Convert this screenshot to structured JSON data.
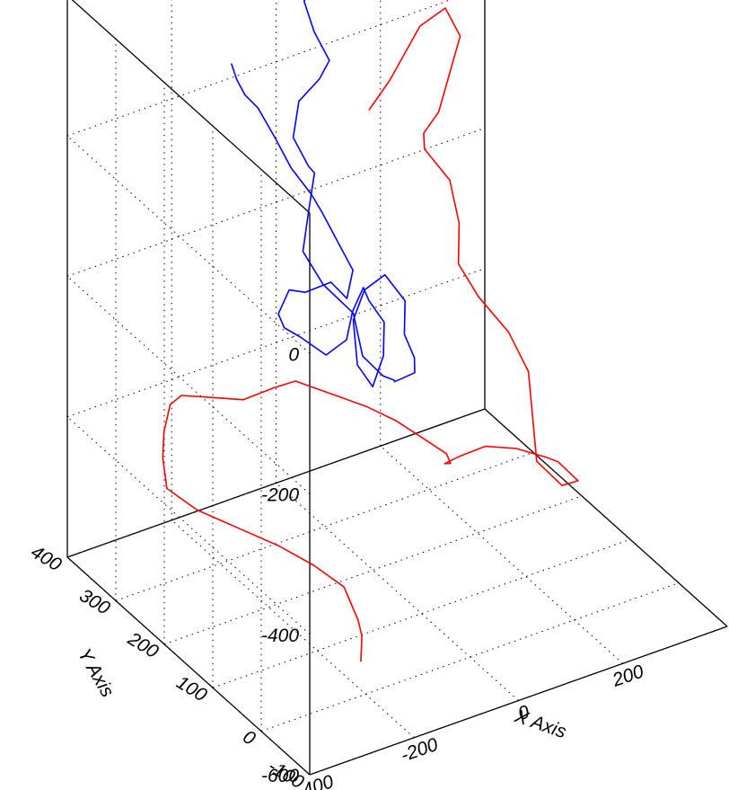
{
  "chart_data": {
    "type": "line",
    "title": "",
    "grid": true,
    "legend": "none",
    "x_axis": {
      "label": "X Axis",
      "range": [
        -400,
        400
      ],
      "ticks": [
        "-400",
        "-200",
        "0",
        "200"
      ]
    },
    "y_axis": {
      "label": "Y Axis",
      "range": [
        -100,
        400
      ],
      "ticks": [
        "-100",
        "0",
        "100",
        "200",
        "300",
        "400"
      ]
    },
    "z_axis": {
      "label": "",
      "range": [
        -600,
        200
      ],
      "ticks": [
        "-600",
        "-400",
        "-200",
        "0"
      ]
    },
    "series": [
      {
        "color": "#0000ff",
        "style": "3D trajectory",
        "points": [
          [
            -225,
            250,
            150
          ],
          [
            -210,
            255,
            120
          ],
          [
            -190,
            260,
            90
          ],
          [
            -160,
            265,
            60
          ],
          [
            -140,
            250,
            20
          ],
          [
            -120,
            240,
            -20
          ],
          [
            -90,
            230,
            -60
          ],
          [
            -60,
            240,
            -100
          ],
          [
            -40,
            230,
            -140
          ],
          [
            -20,
            220,
            -180
          ],
          [
            -50,
            200,
            -200
          ],
          [
            -90,
            190,
            -160
          ],
          [
            -130,
            200,
            -170
          ],
          [
            -170,
            190,
            -150
          ],
          [
            -200,
            180,
            -170
          ],
          [
            -170,
            200,
            -210
          ],
          [
            -130,
            210,
            -240
          ],
          [
            -90,
            200,
            -270
          ],
          [
            -60,
            190,
            -250
          ],
          [
            -30,
            210,
            -230
          ],
          [
            0,
            220,
            -210
          ],
          [
            20,
            230,
            -240
          ],
          [
            40,
            220,
            -270
          ],
          [
            20,
            200,
            -300
          ],
          [
            -10,
            190,
            -330
          ],
          [
            -30,
            200,
            -300
          ],
          [
            -10,
            230,
            -260
          ],
          [
            30,
            250,
            -240
          ],
          [
            60,
            240,
            -220
          ],
          [
            80,
            220,
            -250
          ],
          [
            60,
            200,
            -280
          ],
          [
            70,
            190,
            -310
          ],
          [
            80,
            200,
            -340
          ],
          [
            60,
            220,
            -360
          ],
          [
            40,
            200,
            -340
          ],
          [
            10,
            190,
            -320
          ],
          [
            -20,
            200,
            -290
          ],
          [
            -10,
            230,
            -250
          ],
          [
            -40,
            260,
            -220
          ],
          [
            -60,
            280,
            -180
          ],
          [
            -30,
            300,
            -140
          ],
          [
            -10,
            310,
            -100
          ],
          [
            -40,
            290,
            -70
          ],
          [
            -60,
            300,
            -30
          ],
          [
            -40,
            310,
            10
          ],
          [
            -10,
            300,
            40
          ],
          [
            0,
            290,
            70
          ],
          [
            -20,
            300,
            110
          ],
          [
            -30,
            310,
            150
          ],
          [
            -10,
            300,
            190
          ],
          [
            10,
            310,
            210
          ]
        ]
      },
      {
        "color": "#ff0000",
        "style": "3D trajectory",
        "points": [
          [
            -200,
            10,
            -560
          ],
          [
            -170,
            40,
            -550
          ],
          [
            -140,
            80,
            -560
          ],
          [
            -130,
            120,
            -540
          ],
          [
            -160,
            150,
            -520
          ],
          [
            -200,
            180,
            -500
          ],
          [
            -250,
            210,
            -480
          ],
          [
            -300,
            240,
            -460
          ],
          [
            -330,
            270,
            -440
          ],
          [
            -310,
            300,
            -420
          ],
          [
            -280,
            330,
            -410
          ],
          [
            -240,
            360,
            -400
          ],
          [
            -200,
            380,
            -410
          ],
          [
            -150,
            370,
            -420
          ],
          [
            -100,
            360,
            -430
          ],
          [
            -50,
            350,
            -420
          ],
          [
            0,
            360,
            -430
          ],
          [
            40,
            330,
            -440
          ],
          [
            80,
            300,
            -450
          ],
          [
            110,
            270,
            -460
          ],
          [
            130,
            240,
            -470
          ],
          [
            150,
            210,
            -480
          ],
          [
            130,
            180,
            -470
          ],
          [
            100,
            160,
            -450
          ],
          [
            110,
            140,
            -430
          ],
          [
            150,
            130,
            -420
          ],
          [
            200,
            120,
            -430
          ],
          [
            250,
            110,
            -450
          ],
          [
            280,
            120,
            -470
          ],
          [
            300,
            100,
            -490
          ],
          [
            260,
            90,
            -480
          ],
          [
            230,
            110,
            -450
          ],
          [
            250,
            140,
            -410
          ],
          [
            270,
            170,
            -370
          ],
          [
            260,
            200,
            -330
          ],
          [
            230,
            230,
            -290
          ],
          [
            210,
            250,
            -250
          ],
          [
            230,
            270,
            -210
          ],
          [
            240,
            300,
            -170
          ],
          [
            210,
            320,
            -130
          ],
          [
            190,
            300,
            -90
          ],
          [
            200,
            280,
            -50
          ],
          [
            230,
            290,
            -10
          ],
          [
            260,
            300,
            30
          ],
          [
            250,
            320,
            60
          ],
          [
            220,
            340,
            30
          ],
          [
            200,
            350,
            -10
          ],
          [
            180,
            360,
            -50
          ],
          [
            150,
            370,
            -90
          ]
        ]
      }
    ]
  }
}
